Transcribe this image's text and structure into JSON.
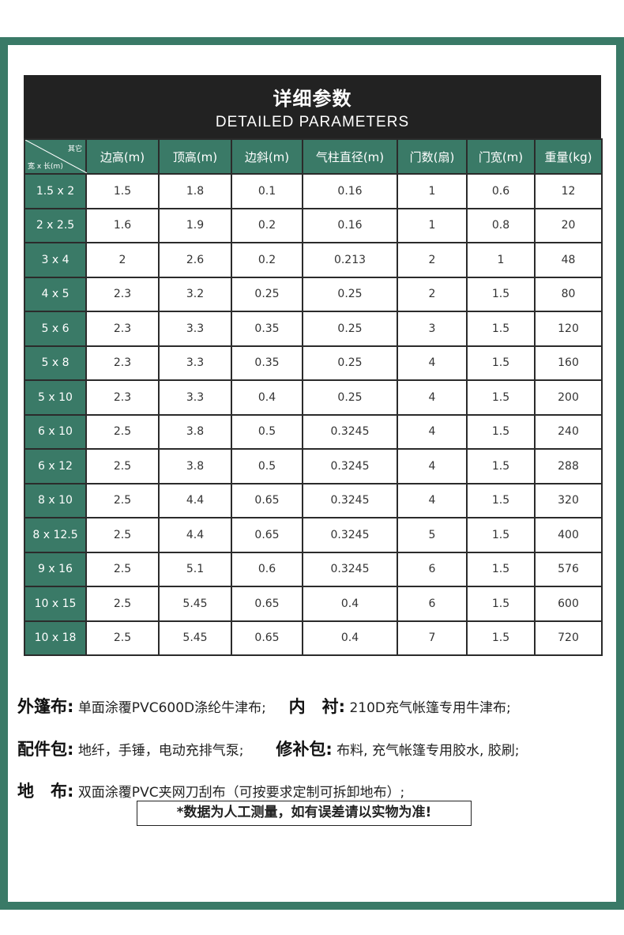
{
  "header": {
    "title_zh": "详细参数",
    "title_en": "DETAILED PARAMETERS"
  },
  "table": {
    "corner_top": "其它",
    "corner_bottom": "宽 x 长(m)",
    "columns": [
      "边高(m)",
      "顶高(m)",
      "边斜(m)",
      "气柱直径(m)",
      "门数(扇)",
      "门宽(m)",
      "重量(kg)"
    ],
    "rows": [
      {
        "size": "1.5 x 2",
        "values": [
          "1.5",
          "1.8",
          "0.1",
          "0.16",
          "1",
          "0.6",
          "12"
        ]
      },
      {
        "size": "2 x 2.5",
        "values": [
          "1.6",
          "1.9",
          "0.2",
          "0.16",
          "1",
          "0.8",
          "20"
        ]
      },
      {
        "size": "3 x 4",
        "values": [
          "2",
          "2.6",
          "0.2",
          "0.213",
          "2",
          "1",
          "48"
        ]
      },
      {
        "size": "4 x 5",
        "values": [
          "2.3",
          "3.2",
          "0.25",
          "0.25",
          "2",
          "1.5",
          "80"
        ]
      },
      {
        "size": "5 x 6",
        "values": [
          "2.3",
          "3.3",
          "0.35",
          "0.25",
          "3",
          "1.5",
          "120"
        ]
      },
      {
        "size": "5 x 8",
        "values": [
          "2.3",
          "3.3",
          "0.35",
          "0.25",
          "4",
          "1.5",
          "160"
        ]
      },
      {
        "size": "5 x 10",
        "values": [
          "2.3",
          "3.3",
          "0.4",
          "0.25",
          "4",
          "1.5",
          "200"
        ]
      },
      {
        "size": "6 x 10",
        "values": [
          "2.5",
          "3.8",
          "0.5",
          "0.3245",
          "4",
          "1.5",
          "240"
        ]
      },
      {
        "size": "6 x 12",
        "values": [
          "2.5",
          "3.8",
          "0.5",
          "0.3245",
          "4",
          "1.5",
          "288"
        ]
      },
      {
        "size": "8 x 10",
        "values": [
          "2.5",
          "4.4",
          "0.65",
          "0.3245",
          "4",
          "1.5",
          "320"
        ]
      },
      {
        "size": "8 x 12.5",
        "values": [
          "2.5",
          "4.4",
          "0.65",
          "0.3245",
          "5",
          "1.5",
          "400"
        ]
      },
      {
        "size": "9 x 16",
        "values": [
          "2.5",
          "5.1",
          "0.6",
          "0.3245",
          "6",
          "1.5",
          "576"
        ]
      },
      {
        "size": "10 x 15",
        "values": [
          "2.5",
          "5.45",
          "0.65",
          "0.4",
          "6",
          "1.5",
          "600"
        ]
      },
      {
        "size": "10 x 18",
        "values": [
          "2.5",
          "5.45",
          "0.65",
          "0.4",
          "7",
          "1.5",
          "720"
        ]
      }
    ]
  },
  "specs": {
    "outer_label": "外篷布:",
    "outer_value": "单面涂覆PVC600D涤纶牛津布;",
    "lining_label": "内　衬:",
    "lining_value": "210D充气帐篷专用牛津布;",
    "accessories_label": "配件包:",
    "accessories_value": "地纤，手锤，电动充排气泵;",
    "repair_label": "修补包:",
    "repair_value": "布料, 充气帐篷专用胶水, 胶刷;",
    "floor_label": "地　布:",
    "floor_value": "双面涂覆PVC夹网刀刮布（可按要求定制可拆卸地布）;"
  },
  "note": "*数据为人工测量，如有误差请以实物为准!",
  "colors": {
    "accent": "#3a7a67",
    "header_bg": "#222222"
  }
}
